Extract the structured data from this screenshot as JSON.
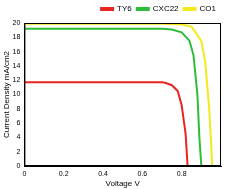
{
  "chart_data": {
    "type": "line",
    "x_label": "Voltage V",
    "y_label": "Current Density mA/cm2",
    "xlim": [
      0,
      1
    ],
    "xticks": [
      0,
      0.2,
      0.4,
      0.6,
      0.8
    ],
    "ylim": [
      0,
      20
    ],
    "yticks": [
      0,
      2,
      4,
      6,
      8,
      10,
      12,
      14,
      16,
      18,
      20
    ],
    "grid": false,
    "legend": "top",
    "series": [
      {
        "name": "TY6",
        "color": "#e8251f",
        "x": [
          0,
          0.1,
          0.2,
          0.3,
          0.4,
          0.5,
          0.6,
          0.7,
          0.72,
          0.75,
          0.78,
          0.8,
          0.82,
          0.83
        ],
        "values": [
          11.7,
          11.7,
          11.7,
          11.7,
          11.7,
          11.7,
          11.7,
          11.7,
          11.6,
          11.3,
          10.5,
          8.5,
          4.5,
          0
        ]
      },
      {
        "name": "CXC22",
        "color": "#2ebd3a",
        "x": [
          0,
          0.1,
          0.2,
          0.3,
          0.4,
          0.5,
          0.6,
          0.7,
          0.75,
          0.8,
          0.84,
          0.86,
          0.88,
          0.89,
          0.9
        ],
        "values": [
          19.2,
          19.2,
          19.2,
          19.2,
          19.2,
          19.2,
          19.2,
          19.2,
          19.1,
          18.7,
          17.5,
          15.5,
          10,
          4,
          0
        ]
      },
      {
        "name": "CO1",
        "color": "#f2ea1c",
        "x": [
          0,
          0.1,
          0.2,
          0.3,
          0.4,
          0.5,
          0.6,
          0.7,
          0.8,
          0.85,
          0.9,
          0.92,
          0.94,
          0.95,
          0.955
        ],
        "values": [
          19.9,
          19.9,
          19.9,
          19.9,
          19.9,
          19.9,
          19.9,
          19.9,
          19.8,
          19.5,
          17.5,
          14.5,
          8,
          3,
          0
        ]
      }
    ]
  }
}
